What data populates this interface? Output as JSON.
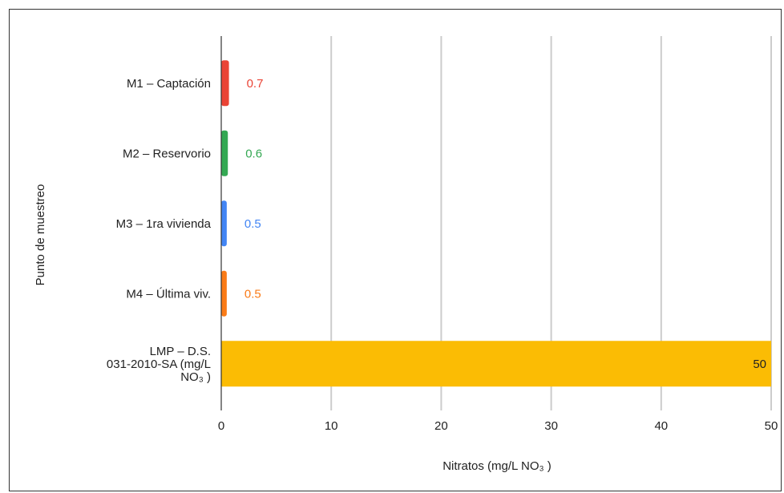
{
  "chart_data": {
    "type": "bar",
    "orientation": "horizontal",
    "categories": [
      [
        "M1 – Captación"
      ],
      [
        "M2 – Reservorio"
      ],
      [
        "M3 – 1ra vivienda"
      ],
      [
        "M4 – Última viv."
      ],
      [
        "LMP – D.S.",
        "031-2010-SA (mg/L",
        "NO₃ )"
      ]
    ],
    "values": [
      0.7,
      0.6,
      0.5,
      0.5,
      50
    ],
    "value_labels": [
      "0.7",
      "0.6",
      "0.5",
      "0.5",
      "50"
    ],
    "colors": [
      "#ea4335",
      "#34a853",
      "#4285f4",
      "#fa7b17",
      "#fbbc04"
    ],
    "label_colors": [
      "#ea4335",
      "#34a853",
      "#4285f4",
      "#fa7b17",
      "#222222"
    ],
    "xlabel": "Nitratos (mg/L NO₃ )",
    "ylabel": "Punto de muestreo",
    "xlim": [
      0,
      50
    ],
    "xticks": [
      0,
      10,
      20,
      30,
      40,
      50
    ],
    "grid": "vertical",
    "legend": "none"
  }
}
